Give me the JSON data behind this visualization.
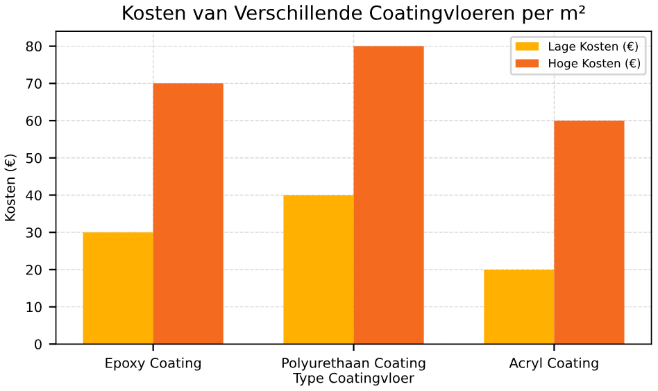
{
  "chart_data": {
    "type": "bar",
    "title": "Kosten van Verschillende Coatingvloeren per m²",
    "xlabel": "Type Coatingvloer",
    "ylabel": "Kosten (€)",
    "categories": [
      "Epoxy Coating",
      "Polyurethaan Coating",
      "Acryl Coating"
    ],
    "series": [
      {
        "name": "Lage Kosten (€)",
        "color": "#ffb000",
        "values": [
          30,
          40,
          20
        ]
      },
      {
        "name": "Hoge Kosten (€)",
        "color": "#f46a1f",
        "values": [
          70,
          80,
          60
        ]
      }
    ],
    "ylim": [
      0,
      84
    ],
    "yticks": [
      0,
      10,
      20,
      30,
      40,
      50,
      60,
      70,
      80
    ],
    "grid": true,
    "legend": "top right"
  }
}
